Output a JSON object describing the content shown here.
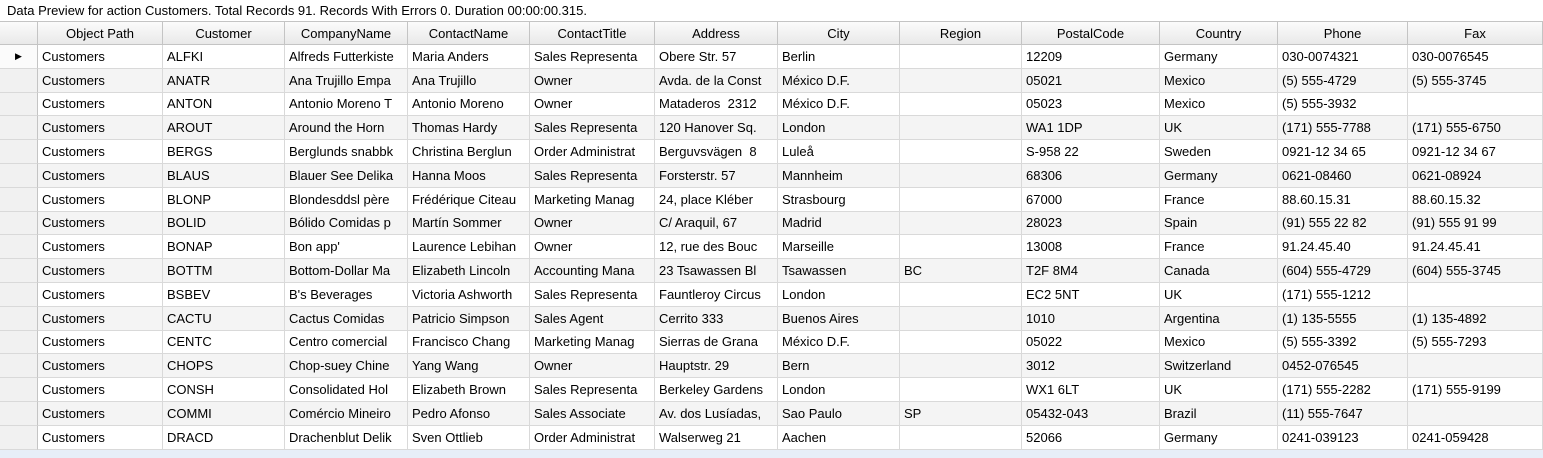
{
  "status_bar": {
    "text": "Data Preview for action Customers. Total Records 91. Records With Errors 0. Duration 00:00:00.315."
  },
  "icons": {
    "current_row_indicator": "▶"
  },
  "colors": {
    "title_bg": "#ffffff",
    "text": "#000000",
    "header_bg_top": "#fbfbfb",
    "header_bg_bottom": "#e9e9e9",
    "grid_line": "#d9d9d9",
    "header_line": "#c4c4c4",
    "row_header_bg": "#f1f1f1",
    "row_bg": "#ffffff",
    "alt_row_bg": "#f4f4f4",
    "bottom_panel_bg": "#e7eef8",
    "indicator": "#000000"
  },
  "grid": {
    "current_row_index": 0,
    "columns": [
      "Object Path",
      "Customer",
      "CompanyName",
      "ContactName",
      "ContactTitle",
      "Address",
      "City",
      "Region",
      "PostalCode",
      "Country",
      "Phone",
      "Fax"
    ],
    "rows": [
      [
        "Customers",
        "ALFKI",
        "Alfreds Futterkiste",
        "Maria Anders",
        "Sales Representa",
        "Obere Str. 57",
        "Berlin",
        "",
        "12209",
        "Germany",
        "030-0074321",
        "030-0076545"
      ],
      [
        "Customers",
        "ANATR",
        "Ana Trujillo Empa",
        "Ana Trujillo",
        "Owner",
        "Avda. de la Const",
        "México D.F.",
        "",
        "05021",
        "Mexico",
        "(5) 555-4729",
        "(5) 555-3745"
      ],
      [
        "Customers",
        "ANTON",
        "Antonio Moreno T",
        "Antonio Moreno",
        "Owner",
        "Mataderos  2312",
        "México D.F.",
        "",
        "05023",
        "Mexico",
        "(5) 555-3932",
        ""
      ],
      [
        "Customers",
        "AROUT",
        "Around the Horn",
        "Thomas Hardy",
        "Sales Representa",
        "120 Hanover Sq.",
        "London",
        "",
        "WA1 1DP",
        "UK",
        "(171) 555-7788",
        "(171) 555-6750"
      ],
      [
        "Customers",
        "BERGS",
        "Berglunds snabbk",
        "Christina Berglun",
        "Order Administrat",
        "Berguvsvägen  8",
        "Luleå",
        "",
        "S-958 22",
        "Sweden",
        "0921-12 34 65",
        "0921-12 34 67"
      ],
      [
        "Customers",
        "BLAUS",
        "Blauer See Delika",
        "Hanna Moos",
        "Sales Representa",
        "Forsterstr. 57",
        "Mannheim",
        "",
        "68306",
        "Germany",
        "0621-08460",
        "0621-08924"
      ],
      [
        "Customers",
        "BLONP",
        "Blondesddsl père",
        "Frédérique Citeau",
        "Marketing Manag",
        "24, place Kléber",
        "Strasbourg",
        "",
        "67000",
        "France",
        "88.60.15.31",
        "88.60.15.32"
      ],
      [
        "Customers",
        "BOLID",
        "Bólido Comidas p",
        "Martín Sommer",
        "Owner",
        "C/ Araquil, 67",
        "Madrid",
        "",
        "28023",
        "Spain",
        "(91) 555 22 82",
        "(91) 555 91 99"
      ],
      [
        "Customers",
        "BONAP",
        "Bon app'",
        "Laurence Lebihan",
        "Owner",
        "12, rue des Bouc",
        "Marseille",
        "",
        "13008",
        "France",
        "91.24.45.40",
        "91.24.45.41"
      ],
      [
        "Customers",
        "BOTTM",
        "Bottom-Dollar Ma",
        "Elizabeth Lincoln",
        "Accounting Mana",
        "23 Tsawassen Bl",
        "Tsawassen",
        "BC",
        "T2F 8M4",
        "Canada",
        "(604) 555-4729",
        "(604) 555-3745"
      ],
      [
        "Customers",
        "BSBEV",
        "B's Beverages",
        "Victoria Ashworth",
        "Sales Representa",
        "Fauntleroy Circus",
        "London",
        "",
        "EC2 5NT",
        "UK",
        "(171) 555-1212",
        ""
      ],
      [
        "Customers",
        "CACTU",
        "Cactus Comidas",
        "Patricio Simpson",
        "Sales Agent",
        "Cerrito 333",
        "Buenos Aires",
        "",
        "1010",
        "Argentina",
        "(1) 135-5555",
        "(1) 135-4892"
      ],
      [
        "Customers",
        "CENTC",
        "Centro comercial",
        "Francisco Chang",
        "Marketing Manag",
        "Sierras de Grana",
        "México D.F.",
        "",
        "05022",
        "Mexico",
        "(5) 555-3392",
        "(5) 555-7293"
      ],
      [
        "Customers",
        "CHOPS",
        "Chop-suey Chine",
        "Yang Wang",
        "Owner",
        "Hauptstr. 29",
        "Bern",
        "",
        "3012",
        "Switzerland",
        "0452-076545",
        ""
      ],
      [
        "Customers",
        "CONSH",
        "Consolidated Hol",
        "Elizabeth Brown",
        "Sales Representa",
        "Berkeley Gardens",
        "London",
        "",
        "WX1 6LT",
        "UK",
        "(171) 555-2282",
        "(171) 555-9199"
      ],
      [
        "Customers",
        "COMMI",
        "Comércio Mineiro",
        "Pedro Afonso",
        "Sales Associate",
        "Av. dos Lusíadas,",
        "Sao Paulo",
        "SP",
        "05432-043",
        "Brazil",
        "(11) 555-7647",
        ""
      ],
      [
        "Customers",
        "DRACD",
        "Drachenblut Delik",
        "Sven Ottlieb",
        "Order Administrat",
        "Walserweg 21",
        "Aachen",
        "",
        "52066",
        "Germany",
        "0241-039123",
        "0241-059428"
      ]
    ]
  }
}
